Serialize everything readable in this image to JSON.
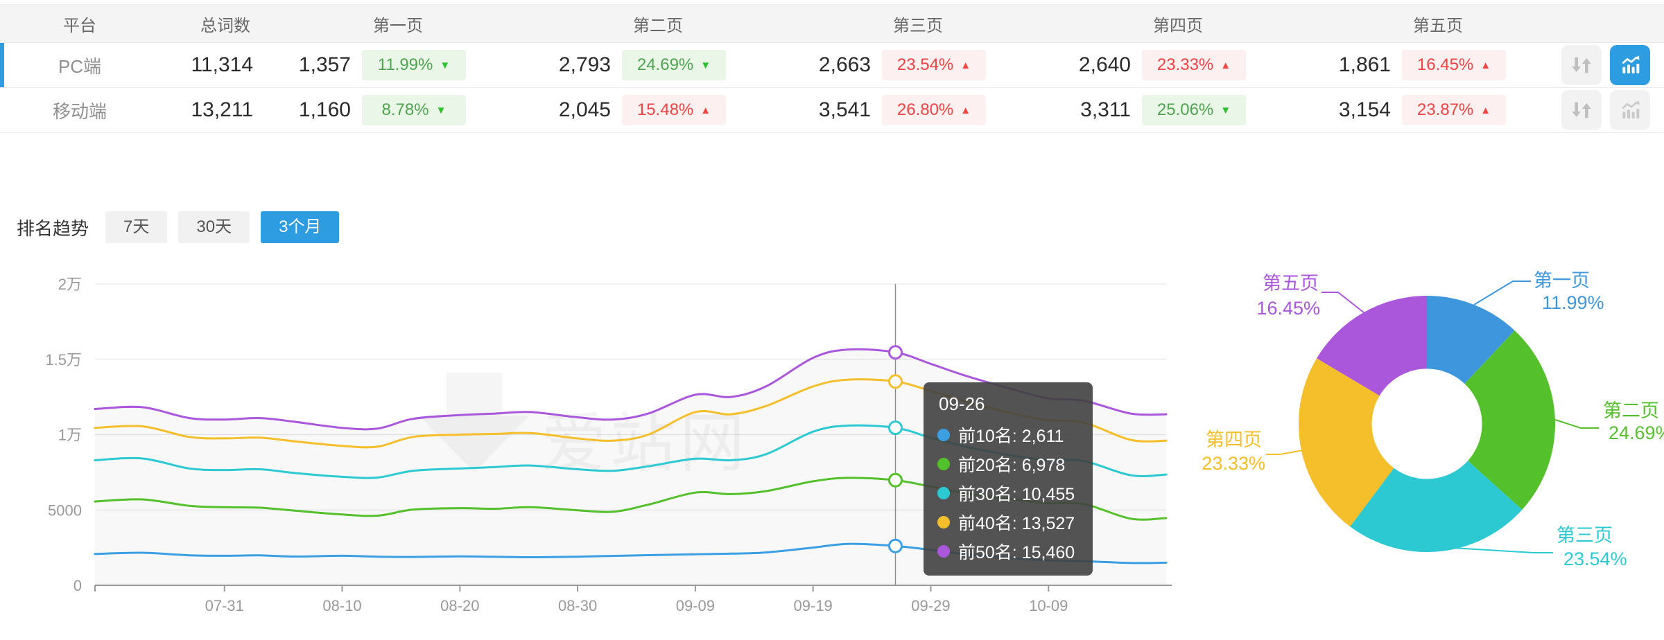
{
  "table": {
    "headers": [
      "平台",
      "总词数",
      "第一页",
      "第二页",
      "第三页",
      "第四页",
      "第五页"
    ],
    "rows": [
      {
        "platform": "PC端",
        "total": "11,314",
        "selected": true,
        "pages": [
          {
            "count": "1,357",
            "pct": "11.99%",
            "dir": "down",
            "trend": "good"
          },
          {
            "count": "2,793",
            "pct": "24.69%",
            "dir": "down",
            "trend": "good"
          },
          {
            "count": "2,663",
            "pct": "23.54%",
            "dir": "up",
            "trend": "bad"
          },
          {
            "count": "2,640",
            "pct": "23.33%",
            "dir": "up",
            "trend": "bad"
          },
          {
            "count": "1,861",
            "pct": "16.45%",
            "dir": "up",
            "trend": "bad"
          }
        ]
      },
      {
        "platform": "移动端",
        "total": "13,211",
        "selected": false,
        "pages": [
          {
            "count": "1,160",
            "pct": "8.78%",
            "dir": "down",
            "trend": "good"
          },
          {
            "count": "2,045",
            "pct": "15.48%",
            "dir": "up",
            "trend": "bad"
          },
          {
            "count": "3,541",
            "pct": "26.80%",
            "dir": "up",
            "trend": "bad"
          },
          {
            "count": "3,311",
            "pct": "25.06%",
            "dir": "down",
            "trend": "good"
          },
          {
            "count": "3,154",
            "pct": "23.87%",
            "dir": "up",
            "trend": "bad"
          }
        ]
      }
    ]
  },
  "trend": {
    "label": "排名趋势",
    "tabs": [
      {
        "label": "7天",
        "active": false
      },
      {
        "label": "30天",
        "active": false
      },
      {
        "label": "3个月",
        "active": true
      }
    ]
  },
  "watermark": {
    "text": "爱站网"
  },
  "colors": {
    "accent": "#2E9CE0",
    "badge_good_text": "#4FA54F",
    "badge_bad_text": "#F04343",
    "axis_text": "#999999"
  },
  "tooltip": {
    "title": "09-26",
    "rows": [
      {
        "text": "前10名: 2,611",
        "color": "#3B9FE2"
      },
      {
        "text": "前20名: 6,978",
        "color": "#54C02B"
      },
      {
        "text": "前30名: 10,455",
        "color": "#2DC9D3"
      },
      {
        "text": "前40名: 13,527",
        "color": "#F5BE2B"
      },
      {
        "text": "前50名: 15,460",
        "color": "#AA57DC"
      }
    ]
  },
  "chart_data": [
    {
      "type": "line",
      "title": "排名趋势 (3个月)",
      "ylim": [
        0,
        20000
      ],
      "y_tick_labels": [
        "0",
        "5000",
        "1万",
        "1.5万",
        "2万"
      ],
      "y_tick_values": [
        0,
        5000,
        10000,
        15000,
        20000
      ],
      "x_tick_labels": [
        "07-31",
        "08-10",
        "08-20",
        "08-30",
        "09-09",
        "09-19",
        "09-29",
        "10-09"
      ],
      "x_tick_days": [
        11,
        21,
        31,
        41,
        51,
        61,
        71,
        81
      ],
      "x_domain_days": [
        0,
        91
      ],
      "grid": true,
      "sample_days": [
        0,
        4,
        8,
        11,
        14,
        17,
        21,
        24,
        27,
        31,
        34,
        37,
        41,
        44,
        47,
        51,
        54,
        57,
        61,
        64,
        68,
        71,
        74,
        78,
        81,
        84,
        88,
        91
      ],
      "series": [
        {
          "name": "前10名",
          "color": "#3B9FE2",
          "values": [
            2080,
            2160,
            1990,
            1960,
            1985,
            1910,
            1960,
            1895,
            1880,
            1920,
            1890,
            1860,
            1900,
            1950,
            2000,
            2060,
            2100,
            2180,
            2500,
            2750,
            2611,
            2350,
            2050,
            1800,
            1650,
            1600,
            1480,
            1500
          ]
        },
        {
          "name": "前20名",
          "color": "#54C02B",
          "values": [
            5560,
            5700,
            5280,
            5180,
            5150,
            4950,
            4700,
            4620,
            5020,
            5120,
            5080,
            5180,
            4980,
            4880,
            5350,
            6150,
            6050,
            6250,
            6900,
            7130,
            6978,
            6550,
            6100,
            5700,
            5450,
            5400,
            4420,
            4460
          ]
        },
        {
          "name": "前30名",
          "color": "#2DC9D3",
          "values": [
            8300,
            8420,
            7750,
            7650,
            7700,
            7450,
            7200,
            7150,
            7600,
            7750,
            7850,
            7950,
            7700,
            7600,
            7900,
            8400,
            8300,
            8700,
            10200,
            10600,
            10455,
            9800,
            9200,
            8600,
            8300,
            8250,
            7300,
            7350
          ]
        },
        {
          "name": "前40名",
          "color": "#F5BE2B",
          "values": [
            10450,
            10550,
            9850,
            9750,
            9800,
            9550,
            9250,
            9200,
            9850,
            10000,
            10050,
            10100,
            9750,
            9600,
            10000,
            11500,
            11350,
            11900,
            13200,
            13650,
            13527,
            12900,
            12200,
            11400,
            10950,
            10800,
            9650,
            9600
          ]
        },
        {
          "name": "前50名",
          "color": "#AA57DC",
          "values": [
            11700,
            11820,
            11100,
            11000,
            11100,
            10850,
            10450,
            10400,
            11050,
            11300,
            11400,
            11500,
            11150,
            11000,
            11400,
            12650,
            12500,
            13200,
            15100,
            15650,
            15460,
            14700,
            13900,
            13000,
            12400,
            12250,
            11400,
            11350
          ]
        }
      ],
      "highlight": {
        "day": 68,
        "date": "09-26",
        "values": [
          2611,
          6978,
          10455,
          13527,
          15460
        ]
      }
    },
    {
      "type": "pie",
      "inner_radius_ratio": 0.43,
      "legend_position": "outside-labels",
      "slices": [
        {
          "label": "第一页",
          "pct": 11.99,
          "pct_text": "11.99%",
          "color": "#3E97DC"
        },
        {
          "label": "第二页",
          "pct": 24.69,
          "pct_text": "24.69%",
          "color": "#54C02B"
        },
        {
          "label": "第三页",
          "pct": 23.54,
          "pct_text": "23.54%",
          "color": "#2DC9D3"
        },
        {
          "label": "第四页",
          "pct": 23.33,
          "pct_text": "23.33%",
          "color": "#F5BE2B"
        },
        {
          "label": "第五页",
          "pct": 16.45,
          "pct_text": "16.45%",
          "color": "#AA57DC"
        }
      ]
    }
  ]
}
